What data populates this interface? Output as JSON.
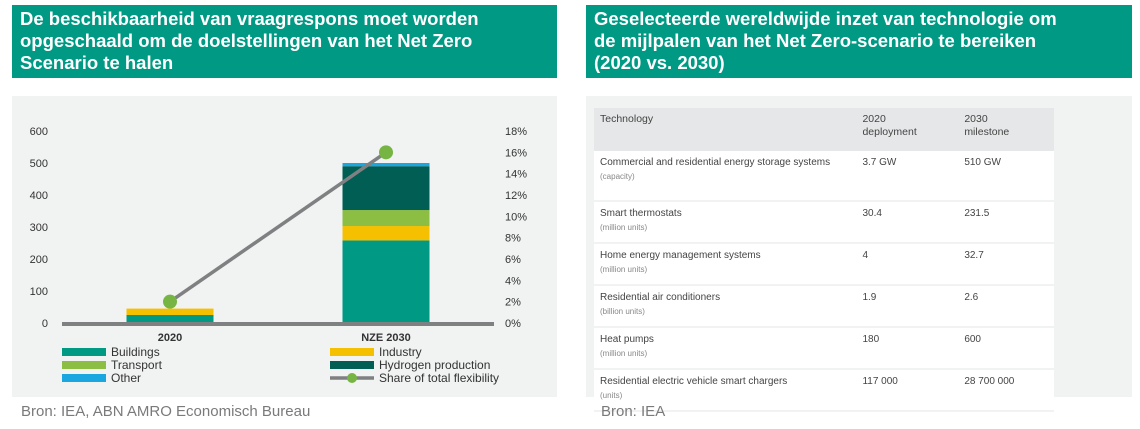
{
  "left": {
    "title_lines": [
      "De beschikbaarheid van vraagrespons moet worden",
      "opgeschaald om de doelstellingen van het Net Zero",
      "Scenario te halen"
    ],
    "source": "Bron: IEA, ABN AMRO Economisch Bureau"
  },
  "right": {
    "title_lines": [
      "Geselecteerde wereldwijde inzet van technologie om",
      "de mijlpalen van het Net Zero-scenario te bereiken",
      "(2020 vs. 2030)"
    ],
    "source": "Bron: IEA",
    "table": {
      "headers": [
        "Technology",
        "2020\ndeployment",
        "2030\nmilestone"
      ],
      "rows": [
        {
          "tech": "Commercial and residential energy storage systems",
          "unit": "(capacity)",
          "v2020": "3.7 GW",
          "v2030": "510 GW"
        },
        {
          "tech": "Smart thermostats",
          "unit": "(million units)",
          "v2020": "30.4",
          "v2030": "231.5"
        },
        {
          "tech": "Home energy management systems",
          "unit": "(million units)",
          "v2020": "4",
          "v2030": "32.7"
        },
        {
          "tech": "Residential air conditioners",
          "unit": "(billion units)",
          "v2020": "1.9",
          "v2030": "2.6"
        },
        {
          "tech": "Heat pumps",
          "unit": "(million units)",
          "v2020": "180",
          "v2030": "600"
        },
        {
          "tech": "Residential electric vehicle smart chargers",
          "unit": "(units)",
          "v2020": "117 000",
          "v2030": "28 700 000"
        }
      ]
    }
  },
  "chart_data": {
    "type": "bar",
    "stacked": true,
    "categories": [
      "2020",
      "NZE 2030"
    ],
    "series": [
      {
        "name": "Buildings",
        "color": "#009a84",
        "values": [
          25,
          258
        ]
      },
      {
        "name": "Industry",
        "color": "#f5c000",
        "values": [
          20,
          45
        ]
      },
      {
        "name": "Transport",
        "color": "#8cbe44",
        "values": [
          0,
          50
        ]
      },
      {
        "name": "Hydrogen production",
        "color": "#005e54",
        "values": [
          0,
          137
        ]
      },
      {
        "name": "Other",
        "color": "#1aa7e0",
        "values": [
          0,
          10
        ]
      }
    ],
    "line_series": {
      "name": "Share of total flexibility",
      "color": "#7f8082",
      "marker_color": "#76b543",
      "values": [
        2,
        16
      ]
    },
    "ylim": [
      0,
      600
    ],
    "yticks": [
      "600",
      "500",
      "400",
      "300",
      "200",
      "100",
      "0"
    ],
    "y2lim": [
      0,
      18
    ],
    "y2ticks": [
      "18%",
      "16%",
      "14%",
      "12%",
      "10%",
      "8%",
      "6%",
      "4%",
      "2%",
      "0%"
    ],
    "legend_position": "bottom",
    "baseline_color": "#7f8082"
  }
}
